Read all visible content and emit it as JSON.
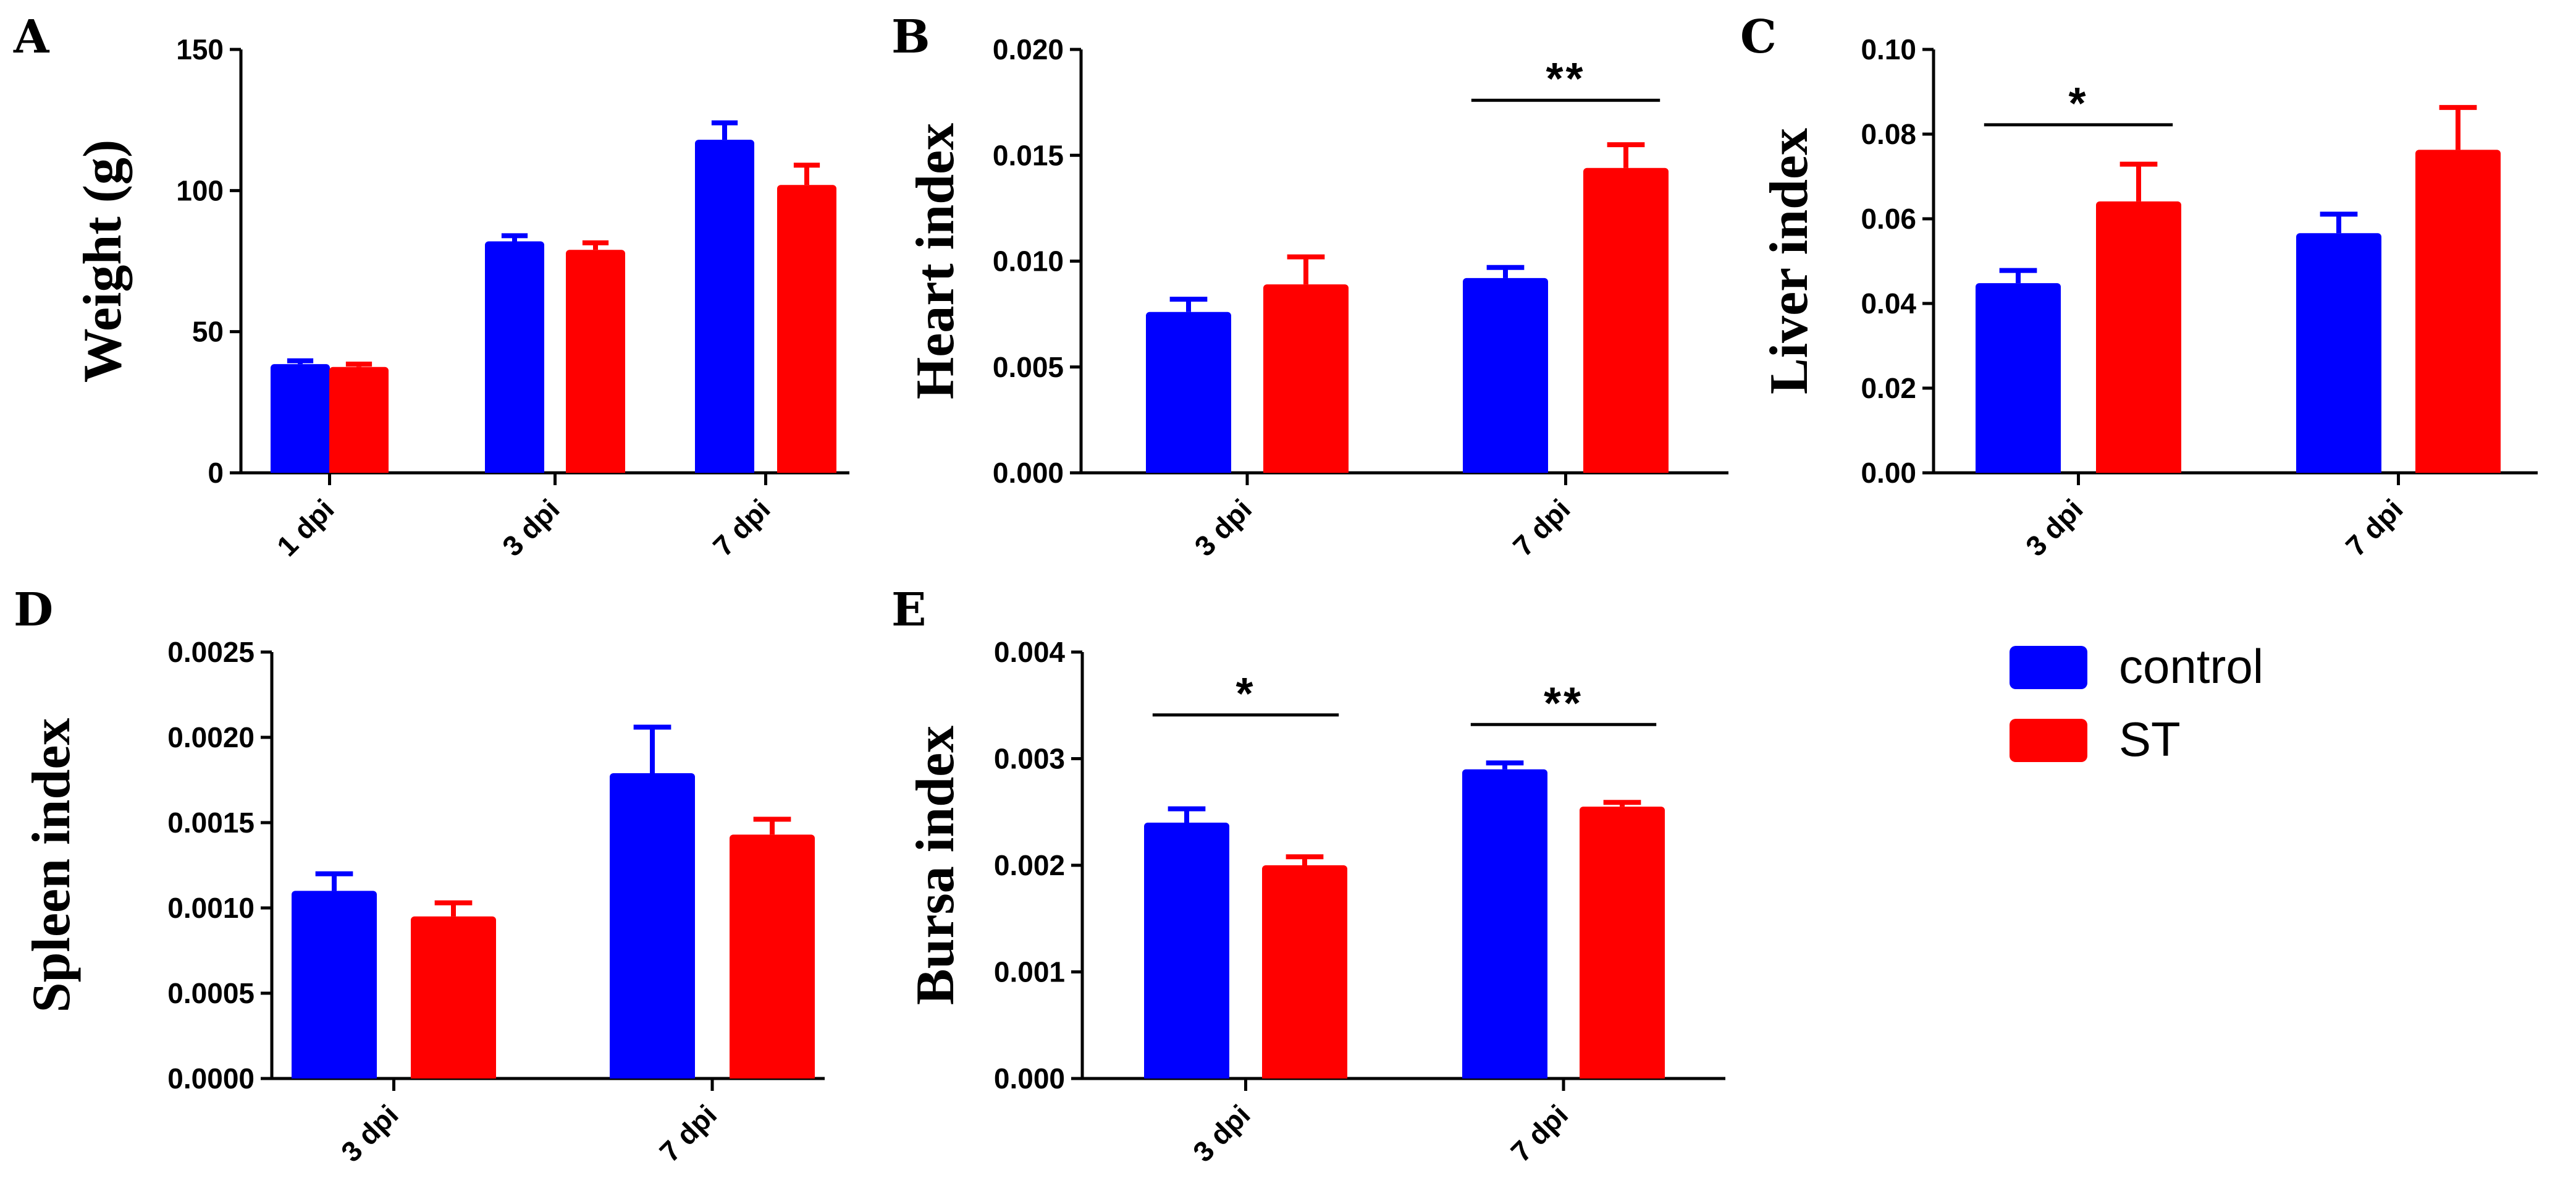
{
  "colors": {
    "control": "#0000ff",
    "ST": "#ff0000",
    "axis": "#000000"
  },
  "legend": {
    "items": [
      {
        "label": "control",
        "color": "#0000ff"
      },
      {
        "label": "ST",
        "color": "#ff0000"
      }
    ]
  },
  "chart_data": [
    {
      "panel": "A",
      "type": "bar",
      "ylabel": "Weight (g)",
      "categories": [
        "1 dpi",
        "3 dpi",
        "7 dpi"
      ],
      "ylim": [
        0,
        150
      ],
      "yticks": [
        "0",
        "50",
        "100",
        "150"
      ],
      "ytick_values": [
        0,
        50,
        100,
        150
      ],
      "series": [
        {
          "name": "control",
          "values": [
            38.5,
            82,
            118
          ],
          "errors": [
            1.2,
            2,
            6
          ]
        },
        {
          "name": "ST",
          "values": [
            37.5,
            79,
            102
          ],
          "errors": [
            1,
            2.5,
            7
          ]
        }
      ],
      "significance": []
    },
    {
      "panel": "B",
      "type": "bar",
      "ylabel": "Heart index",
      "categories": [
        "3 dpi",
        "7 dpi"
      ],
      "ylim": [
        0,
        0.02
      ],
      "yticks": [
        "0.000",
        "0.005",
        "0.010",
        "0.015",
        "0.020"
      ],
      "ytick_values": [
        0,
        0.005,
        0.01,
        0.015,
        0.02
      ],
      "series": [
        {
          "name": "control",
          "values": [
            0.0076,
            0.0092
          ],
          "errors": [
            0.0006,
            0.0005
          ]
        },
        {
          "name": "ST",
          "values": [
            0.0089,
            0.0144
          ],
          "errors": [
            0.0013,
            0.0011
          ]
        }
      ],
      "significance": [
        {
          "category": "7 dpi",
          "label": "**",
          "y": 0.0176
        }
      ]
    },
    {
      "panel": "C",
      "type": "bar",
      "ylabel": "Liver index",
      "categories": [
        "3 dpi",
        "7 dpi"
      ],
      "ylim": [
        0,
        0.1
      ],
      "yticks": [
        "0.00",
        "0.02",
        "0.04",
        "0.06",
        "0.08",
        "0.10"
      ],
      "ytick_values": [
        0,
        0.02,
        0.04,
        0.06,
        0.08,
        0.1
      ],
      "series": [
        {
          "name": "control",
          "values": [
            0.0448,
            0.0566
          ],
          "errors": [
            0.003,
            0.0045
          ]
        },
        {
          "name": "ST",
          "values": [
            0.0641,
            0.0763
          ],
          "errors": [
            0.0088,
            0.01
          ]
        }
      ],
      "significance": [
        {
          "category": "3 dpi",
          "label": "*",
          "y": 0.0822
        }
      ]
    },
    {
      "panel": "D",
      "type": "bar",
      "ylabel": "Spleen index",
      "categories": [
        "3 dpi",
        "7 dpi"
      ],
      "ylim": [
        0,
        0.0025
      ],
      "yticks": [
        "0.0000",
        "0.0005",
        "0.0010",
        "0.0015",
        "0.0020",
        "0.0025"
      ],
      "ytick_values": [
        0,
        0.0005,
        0.001,
        0.0015,
        0.002,
        0.0025
      ],
      "series": [
        {
          "name": "control",
          "values": [
            0.0011,
            0.00179
          ],
          "errors": [
            0.0001,
            0.00027
          ]
        },
        {
          "name": "ST",
          "values": [
            0.00095,
            0.00143
          ],
          "errors": [
            8e-05,
            9e-05
          ]
        }
      ],
      "significance": []
    },
    {
      "panel": "E",
      "type": "bar",
      "ylabel": "Bursa index",
      "categories": [
        "3 dpi",
        "7 dpi"
      ],
      "ylim": [
        0,
        0.004
      ],
      "yticks": [
        "0.000",
        "0.001",
        "0.002",
        "0.003",
        "0.004"
      ],
      "ytick_values": [
        0,
        0.001,
        0.002,
        0.003,
        0.004
      ],
      "series": [
        {
          "name": "control",
          "values": [
            0.0024,
            0.0029
          ],
          "errors": [
            0.00013,
            6e-05
          ]
        },
        {
          "name": "ST",
          "values": [
            0.002,
            0.00255
          ],
          "errors": [
            8e-05,
            4e-05
          ]
        }
      ],
      "significance": [
        {
          "category": "3 dpi",
          "label": "*",
          "y": 0.00341
        },
        {
          "category": "7 dpi",
          "label": "**",
          "y": 0.00332
        }
      ]
    }
  ]
}
